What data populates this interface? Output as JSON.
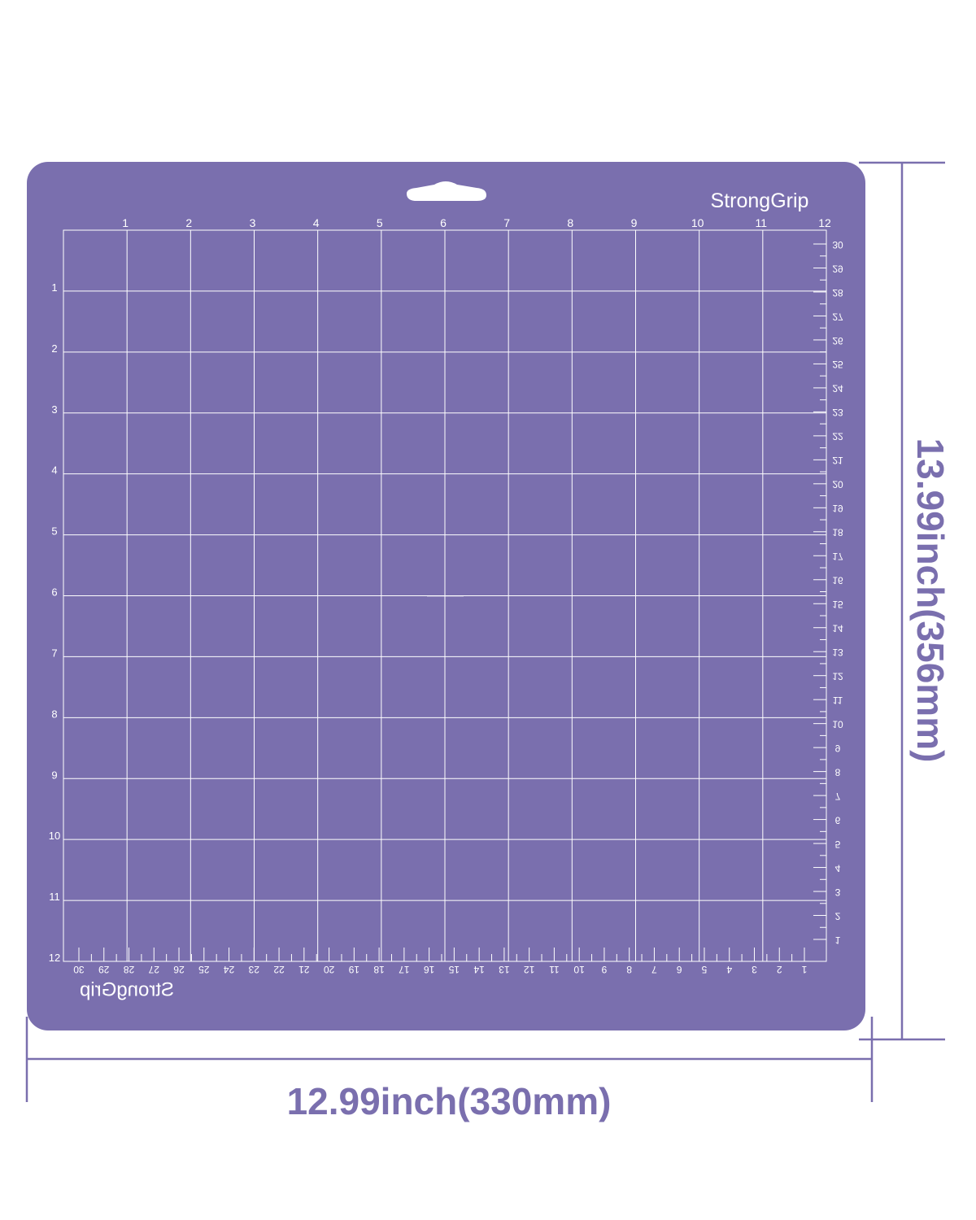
{
  "mat": {
    "brand": "StrongGrip",
    "brand_mirrored": "StrongGrip",
    "color": "#7a6fae",
    "line_color": "#ffffff",
    "inch_marks": [
      "1",
      "2",
      "3",
      "4",
      "5",
      "6",
      "7",
      "8",
      "9",
      "10",
      "11",
      "12"
    ],
    "cm_marks_bottom": [
      "1",
      "2",
      "3",
      "4",
      "5",
      "6",
      "7",
      "8",
      "9",
      "10",
      "11",
      "12",
      "13",
      "14",
      "15",
      "16",
      "17",
      "18",
      "19",
      "20",
      "21",
      "22",
      "23",
      "24",
      "25",
      "26",
      "27",
      "28",
      "29",
      "30"
    ],
    "cm_marks_right": [
      "1",
      "2",
      "3",
      "4",
      "5",
      "6",
      "7",
      "8",
      "9",
      "10",
      "11",
      "12",
      "13",
      "14",
      "15",
      "16",
      "17",
      "18",
      "19",
      "20",
      "21",
      "22",
      "23",
      "24",
      "25",
      "26",
      "27",
      "28",
      "29",
      "30"
    ]
  },
  "dimensions": {
    "width_label": "12.99inch(330mm)",
    "height_label": "13.99inch(356mm)",
    "color": "#7a6fae"
  }
}
